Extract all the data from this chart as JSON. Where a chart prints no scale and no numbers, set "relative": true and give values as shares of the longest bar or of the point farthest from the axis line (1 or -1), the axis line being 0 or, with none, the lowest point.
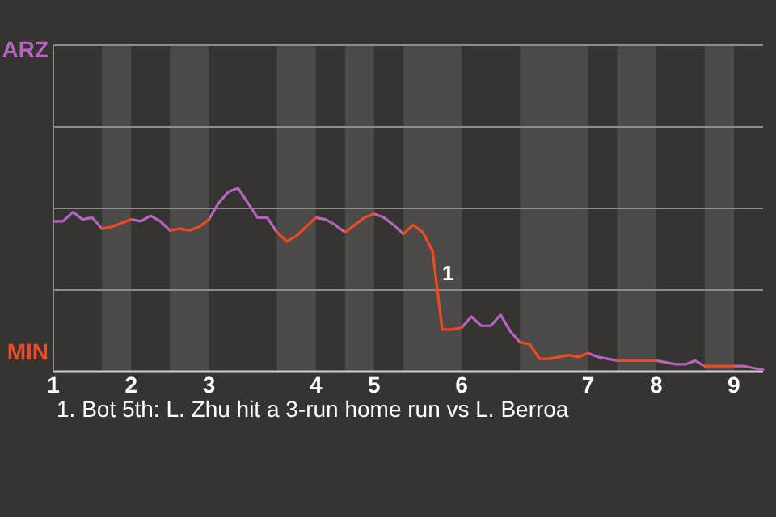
{
  "chart_data": {
    "type": "line",
    "relative": true,
    "categories": [
      "1",
      null,
      null,
      null,
      null,
      null,
      null,
      null,
      "2",
      null,
      null,
      null,
      null,
      null,
      null,
      null,
      "3",
      null,
      null,
      null,
      null,
      null,
      null,
      null,
      null,
      null,
      null,
      "4",
      null,
      null,
      null,
      null,
      null,
      "5",
      null,
      null,
      null,
      null,
      null,
      null,
      null,
      null,
      "6",
      null,
      null,
      null,
      null,
      null,
      null,
      null,
      null,
      null,
      null,
      null,
      null,
      "7",
      null,
      null,
      null,
      null,
      null,
      null,
      "8",
      null,
      null,
      null,
      null,
      null,
      null,
      null,
      "9",
      null,
      null,
      null
    ],
    "marker": "none",
    "line_style": "solid",
    "ref_lines": [
      {
        "axis": "y",
        "value": 0.445,
        "color": "#8c8c8c"
      },
      {
        "axis": "y",
        "value": 0.89,
        "color": "#8c8c8c"
      },
      {
        "axis": "y",
        "value": 1.335,
        "color": "#8c8c8c"
      },
      {
        "axis": "y",
        "value": 1.78,
        "color": "#8c8c8c"
      }
    ],
    "series": [
      {
        "color": "#b565c0",
        "values": [
          0.82,
          0.82,
          0.87,
          0.83,
          0.84,
          0.78,
          null,
          null,
          0.83,
          0.82,
          0.85,
          0.82,
          0.77,
          null,
          null,
          null,
          0.83,
          0.92,
          0.98,
          1,
          0.92,
          0.84,
          0.84,
          0.76,
          null,
          null,
          null,
          0.84,
          0.83,
          0.8,
          0.76,
          null,
          null,
          0.86,
          0.84,
          0.8,
          0.75,
          null,
          null,
          null,
          null,
          null,
          0.24,
          0.3,
          0.25,
          0.25,
          0.31,
          0.22,
          0.16,
          null,
          null,
          null,
          null,
          null,
          null,
          0.1,
          0.08,
          0.07,
          0.06,
          null,
          null,
          null,
          0.06,
          0.05,
          0.04,
          0.04,
          0.06,
          0.03,
          null,
          null,
          0.03,
          0.03,
          0.02,
          0.01
        ]
      },
      {
        "color": "#f04a23",
        "values": [
          null,
          null,
          null,
          null,
          null,
          0.78,
          0.79,
          0.81,
          0.83,
          null,
          null,
          null,
          0.77,
          0.78,
          0.77,
          0.79,
          0.83,
          null,
          null,
          null,
          null,
          null,
          null,
          0.76,
          0.71,
          0.74,
          0.79,
          0.84,
          null,
          null,
          0.76,
          0.8,
          0.84,
          0.86,
          null,
          null,
          0.75,
          0.8,
          0.76,
          0.66,
          0.23,
          0.23,
          0.24,
          null,
          null,
          null,
          null,
          null,
          0.16,
          0.15,
          0.07,
          0.07,
          0.08,
          0.09,
          0.08,
          0.1,
          null,
          null,
          0.06,
          0.06,
          0.06,
          0.06,
          0.06,
          null,
          null,
          null,
          null,
          0.03,
          0.03,
          0.03,
          0.03,
          null,
          null,
          null
        ]
      }
    ],
    "annotations": [
      "ARZ",
      "MIN",
      "1",
      "1. Bot 5th: L. Zhu hit a 3-run home run vs L. Berroa"
    ]
  }
}
